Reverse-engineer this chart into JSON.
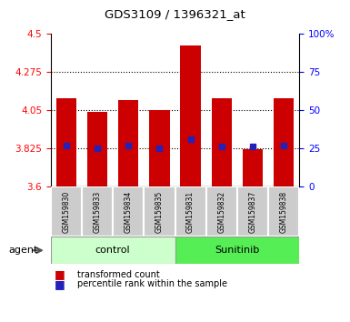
{
  "title": "GDS3109 / 1396321_at",
  "bar_labels": [
    "GSM159830",
    "GSM159833",
    "GSM159834",
    "GSM159835",
    "GSM159831",
    "GSM159832",
    "GSM159837",
    "GSM159838"
  ],
  "bar_top": [
    4.12,
    4.04,
    4.11,
    4.05,
    4.43,
    4.12,
    3.82,
    4.12
  ],
  "bar_bottom": 3.6,
  "blue_dots_y": [
    3.84,
    3.825,
    3.84,
    3.825,
    3.88,
    3.835,
    3.835,
    3.84
  ],
  "bar_color": "#cc0000",
  "dot_color": "#2222bb",
  "y_min": 3.6,
  "y_max": 4.5,
  "y_ticks": [
    3.6,
    3.825,
    4.05,
    4.275,
    4.5
  ],
  "y_tick_labels": [
    "3.6",
    "3.825",
    "4.05",
    "4.275",
    "4.5"
  ],
  "y2_ticks_pct": [
    0,
    25,
    50,
    75,
    100
  ],
  "y2_tick_labels": [
    "0",
    "25",
    "50",
    "75",
    "100%"
  ],
  "group1_label": "control",
  "group2_label": "Sunitinib",
  "group1_color": "#ccffcc",
  "group2_color": "#55ee55",
  "legend_bar_label": "transformed count",
  "legend_dot_label": "percentile rank within the sample",
  "agent_label": "agent"
}
